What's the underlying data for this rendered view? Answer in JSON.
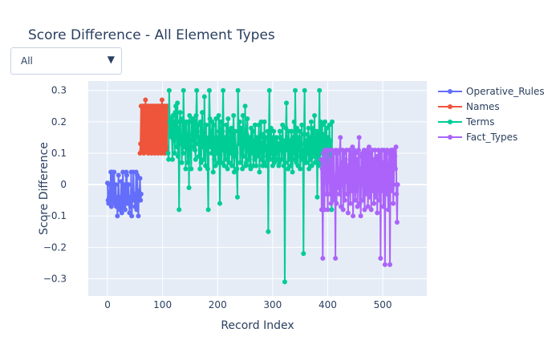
{
  "title": "Score Difference - All Element Types",
  "dropdown": {
    "selected": "All",
    "arrow_icon": "triangle-down-icon"
  },
  "colors": {
    "plot_bg": "#e5ecf6",
    "grid": "#ffffff",
    "operative_rules": "#636efa",
    "names": "#ef553b",
    "terms": "#00cc96",
    "fact_types": "#ab63fa"
  },
  "chart_data": {
    "type": "line",
    "title": "Score Difference - All Element Types",
    "xlabel": "Record Index",
    "ylabel": "Score Difference",
    "xlim": [
      -35,
      580
    ],
    "ylim": [
      -0.355,
      0.33
    ],
    "xticks": [
      0,
      100,
      200,
      300,
      400,
      500
    ],
    "yticks": [
      -0.3,
      -0.2,
      -0.1,
      0,
      0.1,
      0.2,
      0.3
    ],
    "ytick_labels": [
      "−0.3",
      "−0.2",
      "−0.1",
      "0",
      "0.1",
      "0.2",
      "0.3"
    ],
    "grid": true,
    "legend_position": "top-right",
    "series": [
      {
        "name": "Operative_Rules",
        "color": "#636efa",
        "x_start": 0,
        "y": [
          0.005,
          -0.05,
          -0.06,
          -0.04,
          0.0,
          -0.05,
          0.04,
          -0.07,
          0.04,
          0.03,
          -0.05,
          -0.04,
          0.04,
          -0.06,
          -0.04,
          0.0,
          -0.07,
          -0.04,
          -0.1,
          -0.05,
          0.03,
          -0.07,
          -0.04,
          -0.08,
          -0.05,
          0.01,
          -0.09,
          -0.04,
          0.04,
          -0.07,
          -0.05,
          0.0,
          -0.08,
          -0.06,
          0.04,
          0.03,
          -0.06,
          -0.05,
          0.0,
          -0.04,
          -0.09,
          -0.05,
          -0.07,
          0.04,
          -0.1,
          -0.05,
          -0.04,
          0.04,
          -0.05,
          -0.03,
          -0.07,
          -0.05,
          0.04,
          -0.08,
          0.03,
          -0.05,
          -0.1,
          -0.02,
          -0.04,
          0.02,
          -0.05,
          -0.03
        ]
      },
      {
        "name": "Names",
        "color": "#ef553b",
        "x_start": 59,
        "y": [
          0.1,
          0.13,
          0.25,
          0.11,
          0.25,
          0.12,
          0.25,
          0.1,
          0.25,
          0.11,
          0.27,
          0.12,
          0.25,
          0.11,
          0.25,
          0.1,
          0.25,
          0.12,
          0.25,
          0.11,
          0.25,
          0.1,
          0.25,
          0.12,
          0.25,
          0.11,
          0.25,
          0.1,
          0.25,
          0.11,
          0.25,
          0.12,
          0.25,
          0.1,
          0.25,
          0.11,
          0.25,
          0.12,
          0.25,
          0.1,
          0.27,
          0.11,
          0.25,
          0.12,
          0.25,
          0.1,
          0.25,
          0.11,
          0.25,
          0.12,
          0.25
        ]
      },
      {
        "name": "Terms",
        "color": "#00cc96",
        "x_start": 110,
        "y": [
          0.1,
          0.08,
          0.3,
          0.2,
          0.16,
          0.21,
          0.2,
          0.15,
          0.08,
          0.22,
          0.14,
          0.2,
          0.1,
          0.23,
          0.25,
          0.16,
          0.12,
          0.26,
          0.09,
          0.18,
          -0.08,
          0.2,
          0.23,
          0.13,
          0.15,
          0.07,
          0.21,
          0.1,
          0.3,
          0.17,
          0.12,
          0.19,
          0.05,
          0.2,
          0.15,
          0.13,
          0.07,
          0.2,
          -0.01,
          0.22,
          0.11,
          0.14,
          0.05,
          0.2,
          0.16,
          0.21,
          0.12,
          0.15,
          0.2,
          0.11,
          0.08,
          0.22,
          0.3,
          0.17,
          0.13,
          0.19,
          0.09,
          0.15,
          0.05,
          0.2,
          0.07,
          0.14,
          0.23,
          0.12,
          0.15,
          0.08,
          0.28,
          0.13,
          0.06,
          0.19,
          0.11,
          0.14,
          0.05,
          -0.08,
          0.15,
          0.3,
          0.21,
          0.12,
          0.17,
          0.1,
          0.2,
          0.14,
          0.04,
          0.19,
          0.08,
          0.12,
          0.06,
          0.21,
          0.15,
          0.1,
          0.14,
          0.07,
          0.22,
          0.17,
          -0.06,
          0.14,
          0.2,
          0.07,
          0.11,
          0.17,
          0.3,
          0.13,
          0.06,
          0.15,
          0.08,
          0.12,
          0.19,
          0.15,
          0.05,
          0.21,
          0.11,
          0.07,
          0.14,
          0.17,
          0.1,
          0.18,
          0.06,
          0.12,
          0.16,
          0.22,
          0.04,
          0.09,
          0.17,
          0.12,
          0.1,
          0.05,
          -0.04,
          0.3,
          0.17,
          0.13,
          0.2,
          0.07,
          0.14,
          0.18,
          0.11,
          0.05,
          0.22,
          0.09,
          0.15,
          0.12,
          0.25,
          0.06,
          0.07,
          0.16,
          0.21,
          0.11,
          0.08,
          0.14,
          0.15,
          0.06,
          0.05,
          0.18,
          0.12,
          0.1,
          0.17,
          0.06,
          0.14,
          0.08,
          0.19,
          0.14,
          0.06,
          0.09,
          0.15,
          0.12,
          0.1,
          0.19,
          0.04,
          0.11,
          0.15,
          0.2,
          0.08,
          0.13,
          0.06,
          0.16,
          0.07,
          0.2,
          0.11,
          0.15,
          0.06,
          0.12,
          0.09,
          0.17,
          -0.15,
          0.14,
          0.3,
          0.12,
          0.08,
          0.18,
          0.1,
          0.15,
          0.06,
          0.13,
          0.17,
          0.07,
          0.11,
          0.15,
          0.1,
          0.08,
          0.15,
          0.1,
          0.13,
          0.06,
          0.07,
          0.17,
          0.11,
          0.15,
          0.08,
          0.13,
          0.19,
          0.12,
          0.06,
          0.14,
          -0.31,
          0.07,
          0.18,
          0.26,
          0.11,
          0.15,
          0.05,
          0.17,
          0.08,
          0.12,
          0.14,
          0.06,
          0.17,
          0.12,
          0.04,
          0.15,
          0.1,
          0.2,
          0.08,
          0.3,
          0.14,
          0.07,
          0.18,
          0.11,
          0.06,
          0.15,
          0.12,
          0.17,
          0.05,
          0.09,
          0.13,
          0.19,
          0.08,
          0.11,
          -0.22,
          0.16,
          0.3,
          0.07,
          0.14,
          0.12,
          0.07,
          0.16,
          0.1,
          0.18,
          0.05,
          0.13,
          0.15,
          0.08,
          0.2,
          0.06,
          0.12,
          0.18,
          0.09,
          0.15,
          0.22,
          0.07,
          0.11,
          0.14,
          0.17,
          -0.04,
          0.16,
          0.06,
          0.13,
          0.3,
          0.07,
          0.2,
          0.14,
          0.1,
          0.19,
          0.07,
          0.16,
          0.12,
          0.06,
          0.2,
          0.15,
          0.08,
          0.18,
          0.06,
          0.13,
          0.15,
          0.07,
          0.19,
          0.1,
          0.14,
          0.05,
          -0.08,
          0.2
        ]
      },
      {
        "name": "Fact_Types",
        "color": "#ab63fa",
        "x_start": 388,
        "y": [
          0.08,
          -0.08,
          0.05,
          -0.235,
          0.1,
          0.03,
          -0.08,
          0.11,
          0.05,
          0.03,
          -0.03,
          0.11,
          -0.08,
          0.06,
          0.01,
          0.11,
          -0.03,
          0.08,
          -0.06,
          0.04,
          0.11,
          -0.05,
          0.0,
          0.1,
          -0.04,
          0.03,
          -0.235,
          0.11,
          -0.06,
          0.02,
          0.1,
          -0.01,
          0.05,
          -0.03,
          0.11,
          0.15,
          -0.07,
          0.07,
          0.0,
          0.11,
          -0.08,
          0.04,
          0.1,
          -0.05,
          0.08,
          0.01,
          0.11,
          -0.03,
          0.06,
          -0.09,
          0.05,
          0.11,
          0.0,
          -0.06,
          0.1,
          -0.02,
          0.07,
          0.12,
          -0.1,
          0.03,
          0.11,
          0.0,
          -0.05,
          0.1,
          -0.02,
          0.08,
          -0.07,
          0.02,
          0.11,
          0.15,
          -0.06,
          0.05,
          -0.1,
          0.09,
          0.0,
          0.1,
          -0.05,
          0.06,
          0.11,
          -0.08,
          0.02,
          0.1,
          -0.03,
          0.07,
          0.11,
          -0.07,
          0.03,
          0.12,
          -0.04,
          0.06,
          0.1,
          -0.08,
          0.04,
          0.11,
          -0.02,
          0.08,
          -0.06,
          0.0,
          0.11,
          -0.04,
          0.07,
          0.09,
          -0.09,
          0.04,
          0.11,
          0.0,
          -0.05,
          0.1,
          -0.235,
          0.06,
          0.11,
          -0.02,
          0.07,
          -0.07,
          0.11,
          0.03,
          -0.255,
          0.1,
          0.05,
          -0.03,
          0.11,
          0.0,
          -0.08,
          0.06,
          0.1,
          -0.255,
          0.05,
          0.11,
          -0.02,
          0.08,
          0.11,
          -0.06,
          0.0,
          0.11,
          0.09,
          0.05,
          0.12,
          -0.03,
          -0.12,
          0.0
        ]
      }
    ]
  }
}
